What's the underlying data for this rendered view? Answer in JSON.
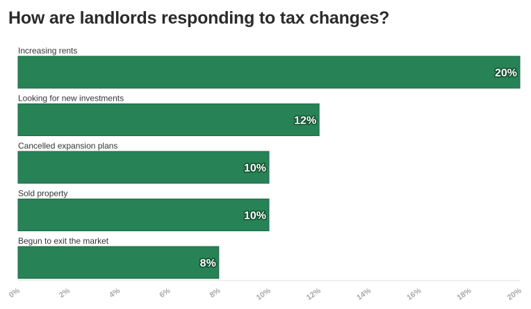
{
  "chart_data": {
    "type": "bar",
    "orientation": "horizontal",
    "title": "How are landlords responding to tax changes?",
    "categories": [
      "Increasing rents",
      "Looking for new investments",
      "Cancelled expansion plans",
      "Sold property",
      "Begun to exit the market"
    ],
    "values": [
      20,
      12,
      10,
      10,
      8
    ],
    "value_labels": [
      "20%",
      "12%",
      "10%",
      "10%",
      "8%"
    ],
    "xlim": [
      0,
      20
    ],
    "x_ticks": [
      "0%",
      "2%",
      "4%",
      "6%",
      "8%",
      "10%",
      "12%",
      "14%",
      "16%",
      "18%",
      "20%"
    ],
    "xlabel": "",
    "ylabel": "",
    "grid": false,
    "legend": "none",
    "colors": {
      "bar": "#278256",
      "bar_border": "#1f6b46",
      "value_text": "#ffffff",
      "tick_text": "#a8a8a8",
      "axis_line": "#e0e0e0",
      "category_text": "#333333"
    }
  }
}
